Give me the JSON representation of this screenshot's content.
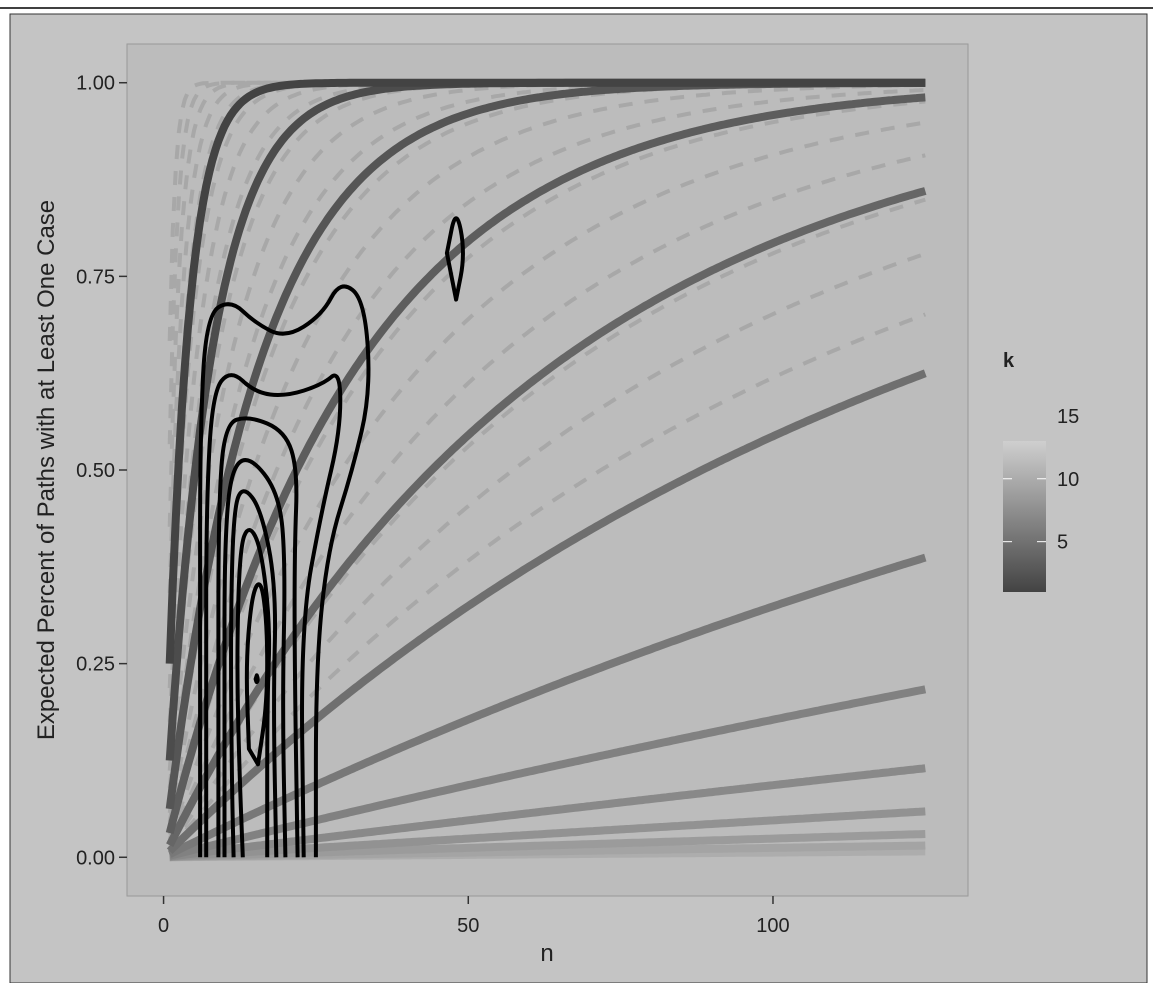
{
  "chart_data": {
    "type": "line",
    "xlabel": "n",
    "ylabel": "Expected Percent of Paths with at Least One Case",
    "xlim": [
      -6,
      132
    ],
    "ylim": [
      -0.05,
      1.05
    ],
    "x_ticks": [
      0,
      50,
      100
    ],
    "x_tick_labels": [
      "0",
      "50",
      "100"
    ],
    "y_ticks": [
      0,
      0.25,
      0.5,
      0.75,
      1
    ],
    "y_tick_labels": [
      "0.00",
      "0.25",
      "0.50",
      "0.75",
      "1.00"
    ],
    "grid": false,
    "legend": {
      "title": "k",
      "position": "right",
      "type": "colorbar",
      "min": 1,
      "max": 13,
      "ticks": [
        5,
        10,
        15
      ],
      "tick_labels": [
        "5",
        "10",
        "15"
      ]
    },
    "solid_series": [
      {
        "k": 1,
        "color": "#434343"
      },
      {
        "k": 2,
        "color": "#4c4c4c"
      },
      {
        "k": 3,
        "color": "#555555"
      },
      {
        "k": 4,
        "color": "#5d5d5d"
      },
      {
        "k": 5,
        "color": "#666666"
      },
      {
        "k": 6,
        "color": "#6f6f6f"
      },
      {
        "k": 7,
        "color": "#787878"
      },
      {
        "k": 8,
        "color": "#818181"
      },
      {
        "k": 9,
        "color": "#898989"
      },
      {
        "k": 10,
        "color": "#929292"
      },
      {
        "k": 11,
        "color": "#9b9b9b"
      },
      {
        "k": 12,
        "color": "#a4a4a4"
      },
      {
        "k": 13,
        "color": "#adadad"
      }
    ],
    "dashed_series_color": "#a8a8a8",
    "density_contours": [
      {
        "level": 1,
        "points": [
          [
            25,
            0
          ],
          [
            25,
            0.25
          ],
          [
            27,
            0.4
          ],
          [
            31,
            0.5
          ],
          [
            34,
            0.6
          ],
          [
            33,
            0.72
          ],
          [
            29,
            0.745
          ],
          [
            26,
            0.7
          ],
          [
            20,
            0.67
          ],
          [
            15,
            0.69
          ],
          [
            11,
            0.72
          ],
          [
            7,
            0.7
          ],
          [
            6,
            0.55
          ],
          [
            6,
            0.3
          ],
          [
            6,
            0
          ]
        ]
      },
      {
        "level": 2,
        "points": [
          [
            23,
            0
          ],
          [
            22.5,
            0.3
          ],
          [
            26,
            0.45
          ],
          [
            29,
            0.55
          ],
          [
            29,
            0.63
          ],
          [
            26,
            0.61
          ],
          [
            20,
            0.595
          ],
          [
            15,
            0.6
          ],
          [
            11,
            0.63
          ],
          [
            8,
            0.6
          ],
          [
            7,
            0.45
          ],
          [
            7,
            0.2
          ],
          [
            7,
            0
          ]
        ]
      },
      {
        "level": 3,
        "points": [
          [
            22,
            0
          ],
          [
            21.5,
            0.25
          ],
          [
            21.5,
            0.4
          ],
          [
            22,
            0.5
          ],
          [
            20,
            0.55
          ],
          [
            14,
            0.57
          ],
          [
            10,
            0.56
          ],
          [
            9,
            0.45
          ],
          [
            9,
            0.2
          ],
          [
            9,
            0
          ]
        ]
      },
      {
        "level": 4,
        "points": [
          [
            20,
            0
          ],
          [
            19.5,
            0.2
          ],
          [
            20,
            0.38
          ],
          [
            19,
            0.47
          ],
          [
            14,
            0.52
          ],
          [
            11,
            0.5
          ],
          [
            10,
            0.4
          ],
          [
            10,
            0.2
          ],
          [
            10,
            0
          ]
        ]
      },
      {
        "level": 5,
        "points": [
          [
            18.5,
            0
          ],
          [
            18,
            0.2
          ],
          [
            18.5,
            0.35
          ],
          [
            16,
            0.45
          ],
          [
            13,
            0.48
          ],
          [
            11.5,
            0.45
          ],
          [
            11,
            0.3
          ],
          [
            11.2,
            0.1
          ],
          [
            11.5,
            0
          ]
        ]
      },
      {
        "level": 6,
        "points": [
          [
            17,
            0
          ],
          [
            17,
            0.2
          ],
          [
            17.5,
            0.3
          ],
          [
            16,
            0.4
          ],
          [
            14,
            0.43
          ],
          [
            12.5,
            0.4
          ],
          [
            12,
            0.25
          ],
          [
            12.5,
            0.1
          ],
          [
            13,
            0
          ]
        ]
      },
      {
        "level": 7,
        "points": [
          [
            15.5,
            0.12
          ],
          [
            17,
            0.2
          ],
          [
            17,
            0.3
          ],
          [
            16,
            0.36
          ],
          [
            14.5,
            0.34
          ],
          [
            13.5,
            0.25
          ],
          [
            14,
            0.14
          ]
        ]
      },
      {
        "level": 8,
        "points": [
          [
            48,
            0.72
          ],
          [
            49.5,
            0.78
          ],
          [
            48,
            0.84
          ],
          [
            46.5,
            0.78
          ]
        ]
      },
      {
        "level": 9,
        "points": [
          [
            15.3,
            0.235
          ],
          [
            15.5,
            0.23
          ],
          [
            15.3,
            0.225
          ],
          [
            15.1,
            0.23
          ]
        ]
      }
    ]
  }
}
